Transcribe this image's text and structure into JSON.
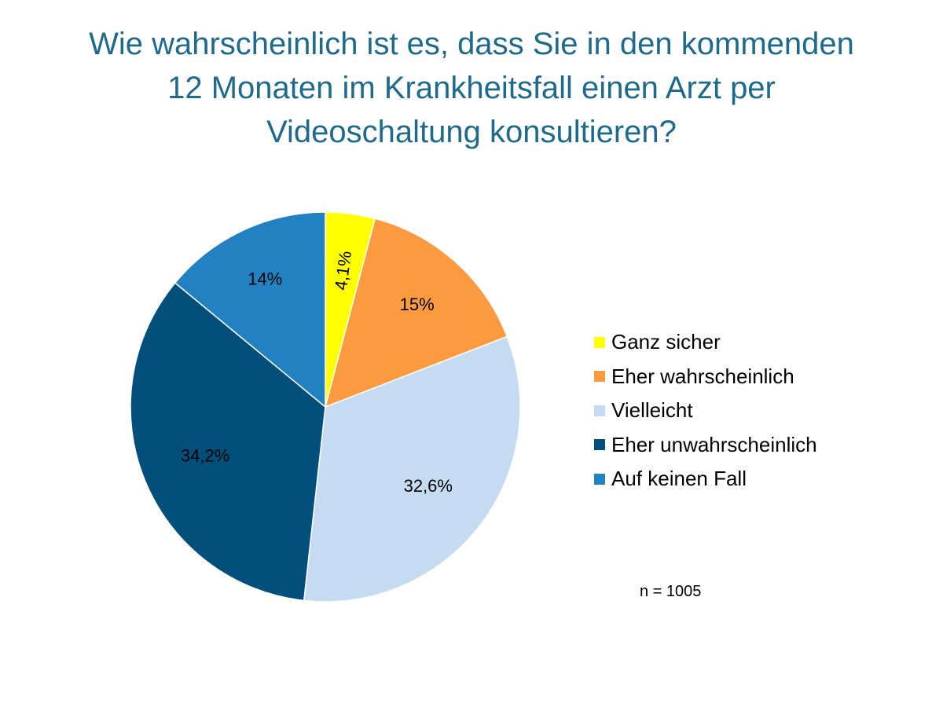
{
  "chart_data": {
    "type": "pie",
    "title_lines": [
      "Wie wahrscheinlich ist es, dass Sie in den kommenden",
      "12 Monaten im Krankheitsfall einen Arzt per",
      "Videoschaltung konsultieren?"
    ],
    "categories": [
      "Ganz sicher",
      "Eher wahrscheinlich",
      "Vielleicht",
      "Eher unwahrscheinlich",
      "Auf keinen Fall"
    ],
    "values": [
      4.1,
      15,
      32.6,
      34.2,
      14
    ],
    "labels": [
      "4,1%",
      "15%",
      "32,6%",
      "34,2%",
      "14%"
    ],
    "colors": [
      "#ffff00",
      "#fb9a3e",
      "#c4dbf2",
      "#024f7c",
      "#2281c1"
    ],
    "legend_position": "right",
    "note": "n = 1005"
  }
}
